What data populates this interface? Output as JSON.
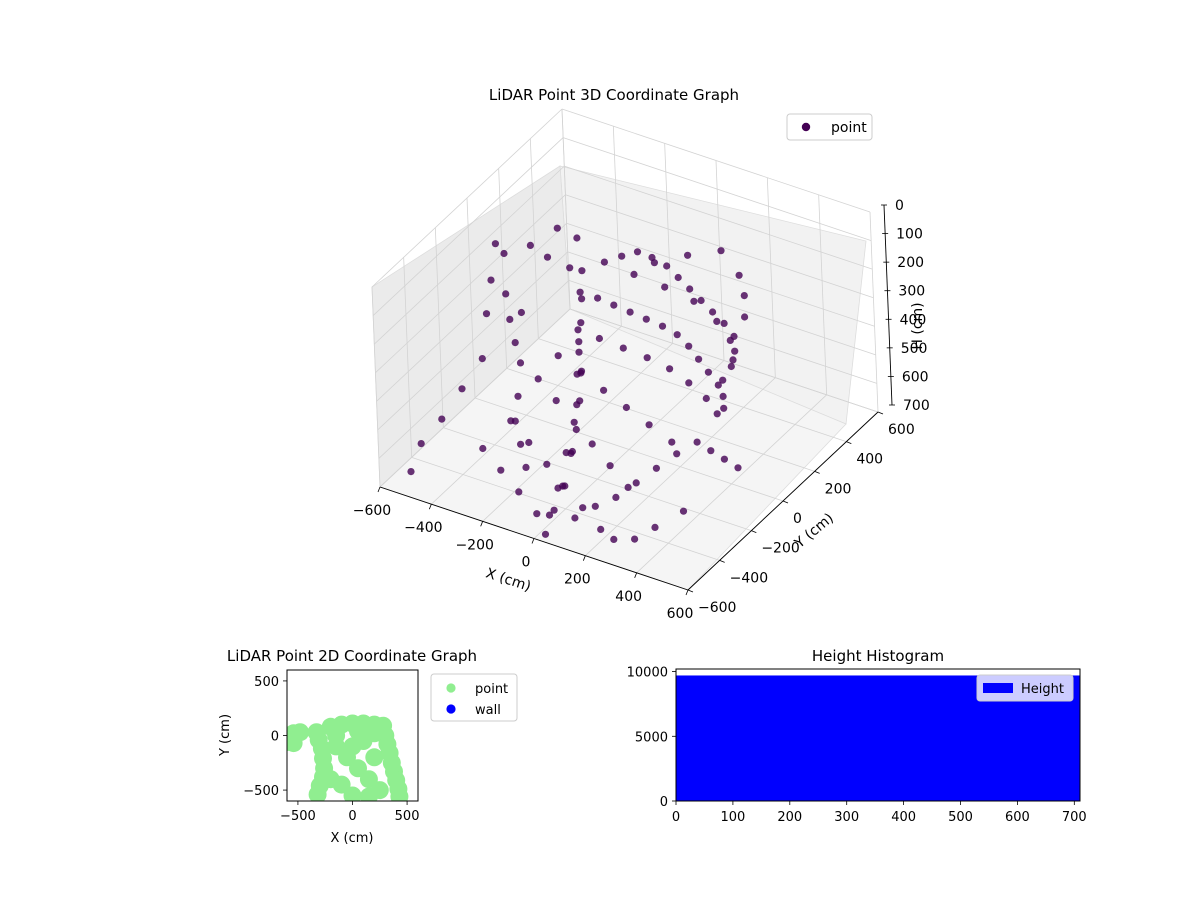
{
  "chart_data": [
    {
      "type": "scatter",
      "projection": "3d",
      "title": "LiDAR Point 3D Coordinate Graph",
      "xlabel": "X (cm)",
      "ylabel": "Y (cm)",
      "zlabel": "H (cm)",
      "xlim": [
        -600,
        600
      ],
      "ylim": [
        -600,
        600
      ],
      "zlim": [
        700,
        0
      ],
      "zinverted": true,
      "xticks": [
        "−600",
        "−400",
        "−200",
        "0",
        "200",
        "400",
        "600"
      ],
      "yticks": [
        "−600",
        "−400",
        "−200",
        "0",
        "200",
        "400",
        "600"
      ],
      "zticks": [
        "0",
        "100",
        "200",
        "300",
        "400",
        "500",
        "600",
        "700"
      ],
      "grid": true,
      "legend": {
        "position": "upper-right",
        "entries": [
          "point"
        ]
      },
      "series": [
        {
          "name": "point",
          "color": "#440154",
          "points": [
            {
              "x": -560,
              "y": 100,
              "h": 200
            },
            {
              "x": -560,
              "y": 150,
              "h": 260
            },
            {
              "x": -570,
              "y": 80,
              "h": 320
            },
            {
              "x": -540,
              "y": 120,
              "h": 380
            },
            {
              "x": -580,
              "y": 60,
              "h": 430
            },
            {
              "x": -520,
              "y": 180,
              "h": 470
            },
            {
              "x": -500,
              "y": 220,
              "h": 250
            },
            {
              "x": -460,
              "y": 260,
              "h": 300
            },
            {
              "x": -430,
              "y": 280,
              "h": 200
            },
            {
              "x": -400,
              "y": 300,
              "h": 340
            },
            {
              "x": -380,
              "y": 320,
              "h": 240
            },
            {
              "x": -350,
              "y": 280,
              "h": 400
            },
            {
              "x": -320,
              "y": 250,
              "h": 300
            },
            {
              "x": -300,
              "y": 200,
              "h": 450
            },
            {
              "x": -280,
              "y": 180,
              "h": 350
            },
            {
              "x": -260,
              "y": 120,
              "h": 500
            },
            {
              "x": -240,
              "y": 100,
              "h": 550
            },
            {
              "x": -220,
              "y": 60,
              "h": 420
            },
            {
              "x": -200,
              "y": 20,
              "h": 600
            },
            {
              "x": -180,
              "y": -20,
              "h": 480
            },
            {
              "x": -160,
              "y": -60,
              "h": 560
            },
            {
              "x": -140,
              "y": -100,
              "h": 620
            },
            {
              "x": -120,
              "y": -160,
              "h": 660
            },
            {
              "x": -100,
              "y": -200,
              "h": 640
            },
            {
              "x": -80,
              "y": -260,
              "h": 600
            },
            {
              "x": -60,
              "y": -320,
              "h": 680
            },
            {
              "x": -40,
              "y": -380,
              "h": 650
            },
            {
              "x": -20,
              "y": -440,
              "h": 690
            },
            {
              "x": 0,
              "y": -500,
              "h": 670
            },
            {
              "x": 20,
              "y": -560,
              "h": 700
            },
            {
              "x": -300,
              "y": -200,
              "h": 500
            },
            {
              "x": -250,
              "y": -300,
              "h": 520
            },
            {
              "x": -200,
              "y": -350,
              "h": 560
            },
            {
              "x": -150,
              "y": -400,
              "h": 600
            },
            {
              "x": -350,
              "y": -100,
              "h": 450
            },
            {
              "x": -400,
              "y": -50,
              "h": 420
            },
            {
              "x": -450,
              "y": 0,
              "h": 380
            },
            {
              "x": -500,
              "y": -100,
              "h": 480
            },
            {
              "x": -520,
              "y": -200,
              "h": 540
            },
            {
              "x": -540,
              "y": -300,
              "h": 600
            },
            {
              "x": -560,
              "y": -400,
              "h": 640
            },
            {
              "x": -540,
              "y": -500,
              "h": 680
            },
            {
              "x": 100,
              "y": -500,
              "h": 650
            },
            {
              "x": 150,
              "y": -450,
              "h": 620
            },
            {
              "x": 200,
              "y": -400,
              "h": 600
            },
            {
              "x": 250,
              "y": -350,
              "h": 560
            },
            {
              "x": 300,
              "y": -300,
              "h": 520
            },
            {
              "x": 350,
              "y": -250,
              "h": 480
            },
            {
              "x": 400,
              "y": -200,
              "h": 450
            },
            {
              "x": 420,
              "y": -150,
              "h": 500
            },
            {
              "x": 440,
              "y": -100,
              "h": 550
            },
            {
              "x": 460,
              "y": -50,
              "h": 600
            },
            {
              "x": 400,
              "y": -300,
              "h": 640
            },
            {
              "x": 350,
              "y": -400,
              "h": 660
            },
            {
              "x": 300,
              "y": -450,
              "h": 690
            },
            {
              "x": 250,
              "y": -500,
              "h": 680
            },
            {
              "x": -100,
              "y": 50,
              "h": 100
            },
            {
              "x": -50,
              "y": 80,
              "h": 80
            },
            {
              "x": 0,
              "y": 100,
              "h": 60
            },
            {
              "x": 50,
              "y": 110,
              "h": 70
            },
            {
              "x": 100,
              "y": 120,
              "h": 90
            },
            {
              "x": 150,
              "y": 110,
              "h": 110
            },
            {
              "x": 200,
              "y": 100,
              "h": 130
            },
            {
              "x": 250,
              "y": 90,
              "h": 150
            },
            {
              "x": 300,
              "y": 80,
              "h": 170
            },
            {
              "x": 350,
              "y": 70,
              "h": 190
            },
            {
              "x": 400,
              "y": 50,
              "h": 210
            },
            {
              "x": 420,
              "y": 20,
              "h": 240
            },
            {
              "x": 430,
              "y": -20,
              "h": 270
            },
            {
              "x": 420,
              "y": -60,
              "h": 300
            },
            {
              "x": -100,
              "y": 0,
              "h": 200
            },
            {
              "x": -50,
              "y": 20,
              "h": 220
            },
            {
              "x": 0,
              "y": 40,
              "h": 240
            },
            {
              "x": 50,
              "y": 60,
              "h": 260
            },
            {
              "x": 100,
              "y": 80,
              "h": 280
            },
            {
              "x": 150,
              "y": 90,
              "h": 300
            },
            {
              "x": 200,
              "y": 80,
              "h": 320
            },
            {
              "x": 250,
              "y": 60,
              "h": 340
            },
            {
              "x": 300,
              "y": 40,
              "h": 360
            },
            {
              "x": 350,
              "y": 20,
              "h": 380
            },
            {
              "x": 380,
              "y": 0,
              "h": 400
            },
            {
              "x": 400,
              "y": -30,
              "h": 420
            },
            {
              "x": -150,
              "y": -50,
              "h": 300
            },
            {
              "x": -80,
              "y": -30,
              "h": 320
            },
            {
              "x": 0,
              "y": -10,
              "h": 340
            },
            {
              "x": 80,
              "y": 10,
              "h": 360
            },
            {
              "x": 160,
              "y": 20,
              "h": 380
            },
            {
              "x": 240,
              "y": 10,
              "h": 400
            },
            {
              "x": 320,
              "y": -10,
              "h": 420
            },
            {
              "x": 380,
              "y": -40,
              "h": 440
            },
            {
              "x": -200,
              "y": -100,
              "h": 380
            },
            {
              "x": -100,
              "y": -120,
              "h": 400
            },
            {
              "x": 0,
              "y": -140,
              "h": 420
            },
            {
              "x": 100,
              "y": -160,
              "h": 440
            },
            {
              "x": 200,
              "y": -180,
              "h": 460
            },
            {
              "x": 300,
              "y": -200,
              "h": 480
            },
            {
              "x": -250,
              "y": -150,
              "h": 450
            },
            {
              "x": -150,
              "y": -200,
              "h": 470
            },
            {
              "x": -50,
              "y": -250,
              "h": 490
            },
            {
              "x": 50,
              "y": -300,
              "h": 510
            },
            {
              "x": 150,
              "y": -350,
              "h": 530
            },
            {
              "x": 250,
              "y": -400,
              "h": 550
            },
            {
              "x": -300,
              "y": -250,
              "h": 560
            },
            {
              "x": -200,
              "y": -300,
              "h": 580
            },
            {
              "x": -100,
              "y": -350,
              "h": 600
            },
            {
              "x": 0,
              "y": -400,
              "h": 620
            },
            {
              "x": 100,
              "y": -450,
              "h": 640
            },
            {
              "x": 200,
              "y": -500,
              "h": 660
            },
            {
              "x": -350,
              "y": -350,
              "h": 620
            },
            {
              "x": -250,
              "y": -400,
              "h": 640
            },
            {
              "x": -150,
              "y": -450,
              "h": 660
            },
            {
              "x": -50,
              "y": -500,
              "h": 680
            },
            {
              "x": 0,
              "y": 200,
              "h": 150
            },
            {
              "x": 100,
              "y": 250,
              "h": 120
            },
            {
              "x": 200,
              "y": 300,
              "h": 100
            },
            {
              "x": 300,
              "y": 250,
              "h": 130
            },
            {
              "x": 350,
              "y": 200,
              "h": 160
            },
            {
              "x": 380,
              "y": 150,
              "h": 200
            },
            {
              "x": -50,
              "y": 150,
              "h": 180
            },
            {
              "x": 50,
              "y": 180,
              "h": 210
            },
            {
              "x": 150,
              "y": 200,
              "h": 240
            },
            {
              "x": 250,
              "y": 180,
              "h": 270
            },
            {
              "x": 320,
              "y": 150,
              "h": 300
            },
            {
              "x": 360,
              "y": 100,
              "h": 330
            }
          ]
        }
      ]
    },
    {
      "type": "scatter",
      "title": "LiDAR Point 2D Coordinate Graph",
      "xlabel": "X (cm)",
      "ylabel": "Y (cm)",
      "xlim": [
        -600,
        600
      ],
      "ylim": [
        -600,
        600
      ],
      "xticks": [
        "−500",
        "0",
        "500"
      ],
      "yticks": [
        "−500",
        "0",
        "500"
      ],
      "legend": {
        "position": "outside-right",
        "entries": [
          "point",
          "wall"
        ]
      },
      "series": [
        {
          "name": "point",
          "color": "#90ee90",
          "points": [
            {
              "x": -600,
              "y": 0
            },
            {
              "x": -540,
              "y": 20
            },
            {
              "x": -480,
              "y": 30
            },
            {
              "x": -600,
              "y": -60
            },
            {
              "x": -540,
              "y": -70
            },
            {
              "x": -330,
              "y": 30
            },
            {
              "x": -310,
              "y": -40
            },
            {
              "x": -280,
              "y": -120
            },
            {
              "x": -270,
              "y": -210
            },
            {
              "x": -260,
              "y": -300
            },
            {
              "x": -270,
              "y": -380
            },
            {
              "x": -300,
              "y": -460
            },
            {
              "x": -320,
              "y": -540
            },
            {
              "x": -200,
              "y": 80
            },
            {
              "x": -100,
              "y": 100
            },
            {
              "x": 0,
              "y": 110
            },
            {
              "x": 100,
              "y": 110
            },
            {
              "x": 200,
              "y": 100
            },
            {
              "x": 280,
              "y": 90
            },
            {
              "x": 300,
              "y": 0
            },
            {
              "x": 320,
              "y": -80
            },
            {
              "x": 340,
              "y": -160
            },
            {
              "x": 360,
              "y": -250
            },
            {
              "x": 380,
              "y": -330
            },
            {
              "x": 400,
              "y": -410
            },
            {
              "x": 420,
              "y": -490
            },
            {
              "x": 430,
              "y": -560
            },
            {
              "x": -150,
              "y": -100
            },
            {
              "x": -50,
              "y": -200
            },
            {
              "x": 50,
              "y": -300
            },
            {
              "x": 150,
              "y": -400
            },
            {
              "x": 250,
              "y": -500
            },
            {
              "x": -100,
              "y": -450
            },
            {
              "x": 0,
              "y": -100
            },
            {
              "x": 100,
              "y": -50
            },
            {
              "x": 200,
              "y": -200
            },
            {
              "x": -200,
              "y": -400
            },
            {
              "x": 0,
              "y": -550
            },
            {
              "x": 150,
              "y": -560
            },
            {
              "x": -150,
              "y": 0
            },
            {
              "x": 50,
              "y": 40
            },
            {
              "x": 200,
              "y": 20
            }
          ]
        },
        {
          "name": "wall",
          "color": "#0000ff",
          "points": []
        }
      ]
    },
    {
      "type": "bar",
      "subtype": "histogram",
      "title": "Height Histogram",
      "xlabel": "",
      "ylabel": "",
      "xlim": [
        0,
        710
      ],
      "ylim": [
        0,
        10200
      ],
      "xticks": [
        "0",
        "100",
        "200",
        "300",
        "400",
        "500",
        "600",
        "700"
      ],
      "yticks": [
        "0",
        "5000",
        "10000"
      ],
      "legend": {
        "position": "upper-right",
        "entries": [
          "Height"
        ]
      },
      "series": [
        {
          "name": "Height",
          "color": "#0000ff",
          "bins": [
            {
              "x0": 0,
              "x1": 710,
              "count": 9700
            }
          ]
        }
      ]
    }
  ]
}
